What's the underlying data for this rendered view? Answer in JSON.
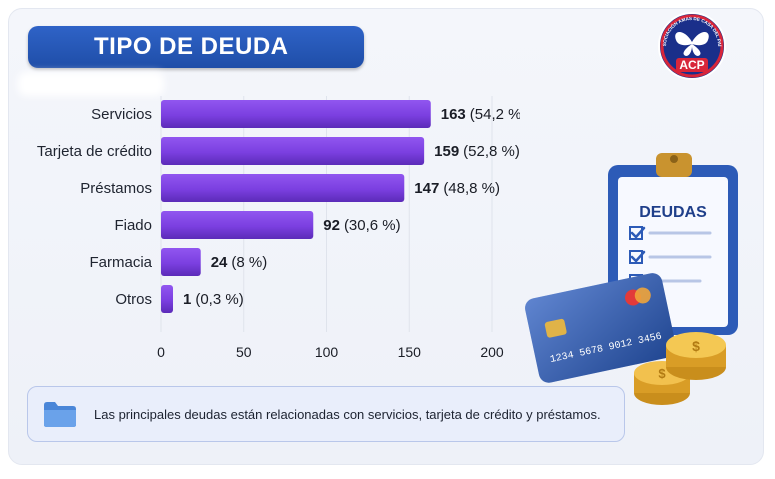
{
  "header": {
    "title": "TIPO DE DEUDA"
  },
  "note": {
    "text": "Las principales deudas están relacionadas con servicios, tarjeta de crédito y préstamos.",
    "icon": "folder-icon"
  },
  "logo": {
    "arc_text": "ASOCIACIÓN AMAS DE CASA DEL PAÍS",
    "short": "ACP",
    "icon": "butterfly-icon"
  },
  "illustration": {
    "clipboard_title": "DEUDAS",
    "card_number": "1234 5678 9012 3456"
  },
  "colors": {
    "bar": "#7b3fe0",
    "bar_dark": "#5b2bb8",
    "banner": "#2a5cc0"
  },
  "chart_data": {
    "type": "bar",
    "orientation": "horizontal",
    "categories": [
      "Servicios",
      "Tarjeta de crédito",
      "Préstamos",
      "Fiado",
      "Farmacia",
      "Otros"
    ],
    "values": [
      163,
      159,
      147,
      92,
      24,
      1
    ],
    "percent_labels": [
      "(54,2 %)",
      "(52,8 %)",
      "(48,8 %)",
      "(30,6 %)",
      "(8 %)",
      "(0,3 %)"
    ],
    "xlim": [
      0,
      200
    ],
    "xticks": [
      0,
      50,
      100,
      150,
      200
    ],
    "grid": true,
    "legend": "none"
  }
}
